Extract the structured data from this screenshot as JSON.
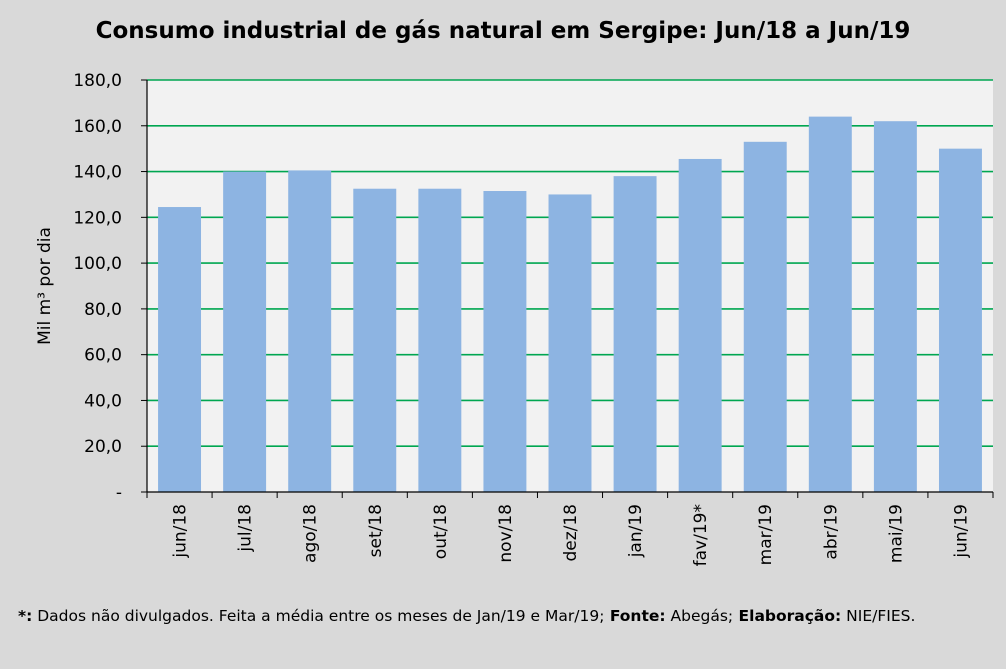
{
  "chart_data": {
    "type": "bar",
    "title": "Consumo industrial de gás natural  em Sergipe: Jun/18 a Jun/19",
    "ylabel": "Mil m³ por dia",
    "xlabel": "",
    "categories": [
      "jun/18",
      "jul/18",
      "ago/18",
      "set/18",
      "out/18",
      "nov/18",
      "dez/18",
      "jan/19",
      "fav/19*",
      "mar/19",
      "abr/19",
      "mai/19",
      "jun/19"
    ],
    "values": [
      124.5,
      140.0,
      140.5,
      132.5,
      132.5,
      131.5,
      130.0,
      138.0,
      145.5,
      153.0,
      164.0,
      162.0,
      150.0
    ],
    "ylim": [
      0,
      180
    ],
    "yticks": [
      0,
      20,
      40,
      60,
      80,
      100,
      120,
      140,
      160,
      180
    ],
    "ytick_labels": [
      "-",
      "20,0",
      "40,0",
      "60,0",
      "80,0",
      "100,0",
      "120,0",
      "140,0",
      "160,0",
      "180,0"
    ],
    "grid": true,
    "bar_color": "#8db4e2",
    "grid_color": "#00a651",
    "plot_background": "#f2f2f2"
  },
  "footnote": {
    "marker": "*:",
    "text1": " Dados não divulgados. Feita a média entre os meses de Jan/19 e Mar/19;",
    "fonte_label": " Fonte:",
    "fonte_value": " Abegás;",
    "elab_label": " Elaboração:",
    "elab_value": "  NIE/FIES."
  }
}
